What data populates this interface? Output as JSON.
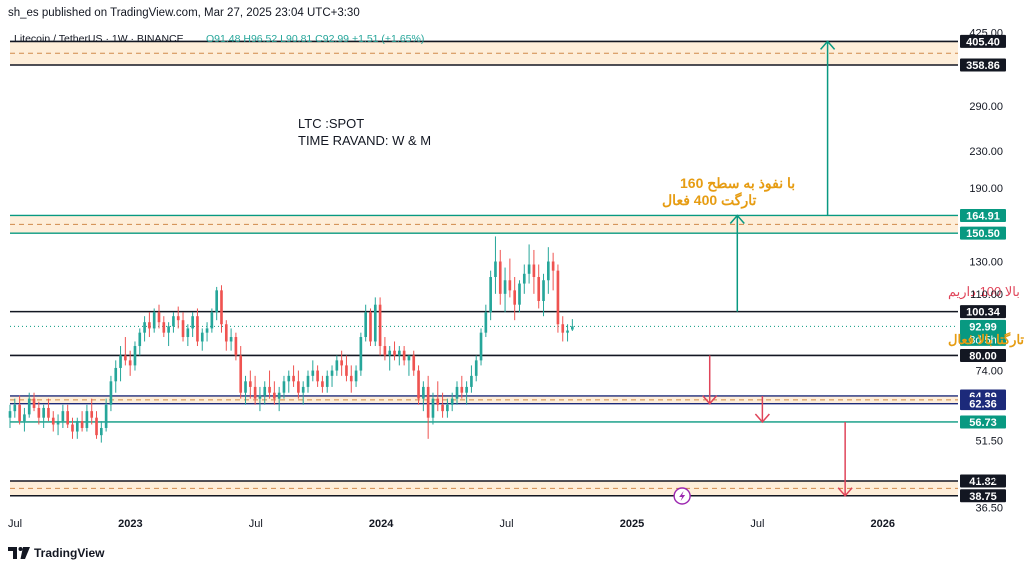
{
  "header": {
    "published_by": "sh_es published on TradingView.com, Mar 27, 2025 23:04 UTC+3:30"
  },
  "legend": {
    "symbol": "Litecoin / TetherUS · 1W · BINANCE",
    "ohlc": "O91.48 H96.52 L90.81 C92.99 +1.51 (+1.65%)"
  },
  "footer": {
    "brand": "TradingView"
  },
  "colors": {
    "up": "#26a69a",
    "down": "#ef5350",
    "teal_line": "#089981",
    "zone_fill": "#fde8cc",
    "annotation_orange": "#e69c12",
    "annotation_red": "#e0455a",
    "arrow_teal": "#089981",
    "arrow_red": "#e0455a"
  },
  "chart_data": {
    "type": "candlestick",
    "title": "Litecoin / TetherUS · 1W · BINANCE",
    "scale": "log",
    "ylim": [
      36,
      430
    ],
    "xlim": [
      2022.52,
      2026.3
    ],
    "y_ticks": [
      425,
      290,
      230,
      190,
      130,
      110,
      74,
      51.5,
      42.5,
      36.5
    ],
    "y_tick_labels": [
      "425.00",
      "290.00",
      "230.00",
      "190.00",
      "130.00",
      "110.00",
      "74.00",
      "51.50",
      "42.50",
      "36.50"
    ],
    "x_ticks": [
      {
        "t": 2022.54,
        "label": "Jul"
      },
      {
        "t": 2023.0,
        "label": "2023"
      },
      {
        "t": 2023.5,
        "label": "Jul"
      },
      {
        "t": 2024.0,
        "label": "2024"
      },
      {
        "t": 2024.5,
        "label": "Jul"
      },
      {
        "t": 2025.0,
        "label": "2025"
      },
      {
        "t": 2025.5,
        "label": "Jul"
      },
      {
        "t": 2026.0,
        "label": "2026"
      }
    ],
    "candles_start": 2022.52,
    "candles_step_weeks": 1,
    "candles": [
      [
        58,
        62,
        55,
        60
      ],
      [
        60,
        64,
        58,
        62
      ],
      [
        62,
        65,
        56,
        57
      ],
      [
        57,
        61,
        54,
        59
      ],
      [
        59,
        66,
        58,
        64
      ],
      [
        64,
        66,
        60,
        61
      ],
      [
        61,
        63,
        56,
        58
      ],
      [
        58,
        62,
        55,
        61
      ],
      [
        61,
        64,
        57,
        58
      ],
      [
        58,
        60,
        54,
        56
      ],
      [
        56,
        59,
        53,
        57
      ],
      [
        57,
        62,
        55,
        60
      ],
      [
        60,
        62,
        55,
        56
      ],
      [
        56,
        58,
        52,
        54
      ],
      [
        54,
        58,
        52,
        57
      ],
      [
        57,
        60,
        54,
        55
      ],
      [
        55,
        62,
        54,
        60
      ],
      [
        60,
        64,
        56,
        58
      ],
      [
        58,
        60,
        52,
        53
      ],
      [
        53,
        57,
        51,
        55
      ],
      [
        55,
        64,
        54,
        62
      ],
      [
        62,
        72,
        60,
        70
      ],
      [
        70,
        78,
        66,
        75
      ],
      [
        75,
        84,
        70,
        80
      ],
      [
        80,
        88,
        76,
        78
      ],
      [
        78,
        82,
        72,
        76
      ],
      [
        76,
        86,
        74,
        84
      ],
      [
        84,
        92,
        80,
        90
      ],
      [
        90,
        98,
        86,
        95
      ],
      [
        95,
        100,
        88,
        92
      ],
      [
        92,
        102,
        90,
        100
      ],
      [
        100,
        104,
        92,
        95
      ],
      [
        95,
        98,
        88,
        90
      ],
      [
        90,
        95,
        84,
        93
      ],
      [
        93,
        100,
        90,
        98
      ],
      [
        98,
        103,
        92,
        96
      ],
      [
        96,
        100,
        86,
        88
      ],
      [
        88,
        94,
        84,
        92
      ],
      [
        92,
        100,
        88,
        98
      ],
      [
        98,
        102,
        84,
        86
      ],
      [
        86,
        92,
        82,
        90
      ],
      [
        90,
        95,
        86,
        92
      ],
      [
        92,
        102,
        90,
        100
      ],
      [
        100,
        114,
        96,
        112
      ],
      [
        112,
        115,
        90,
        94
      ],
      [
        94,
        96,
        82,
        86
      ],
      [
        86,
        92,
        82,
        88
      ],
      [
        88,
        90,
        78,
        80
      ],
      [
        80,
        84,
        64,
        66
      ],
      [
        66,
        72,
        62,
        70
      ],
      [
        70,
        74,
        64,
        68
      ],
      [
        68,
        72,
        62,
        64
      ],
      [
        64,
        68,
        60,
        65
      ],
      [
        65,
        70,
        62,
        68
      ],
      [
        68,
        74,
        64,
        66
      ],
      [
        66,
        70,
        62,
        64
      ],
      [
        64,
        68,
        60,
        66
      ],
      [
        66,
        72,
        64,
        70
      ],
      [
        70,
        74,
        66,
        72
      ],
      [
        72,
        76,
        68,
        70
      ],
      [
        70,
        74,
        64,
        66
      ],
      [
        66,
        70,
        62,
        68
      ],
      [
        68,
        74,
        66,
        72
      ],
      [
        72,
        78,
        70,
        74
      ],
      [
        74,
        76,
        68,
        70
      ],
      [
        70,
        72,
        66,
        68
      ],
      [
        68,
        74,
        66,
        72
      ],
      [
        72,
        76,
        68,
        74
      ],
      [
        74,
        80,
        72,
        78
      ],
      [
        78,
        82,
        72,
        76
      ],
      [
        76,
        80,
        70,
        72
      ],
      [
        72,
        76,
        66,
        70
      ],
      [
        70,
        76,
        68,
        74
      ],
      [
        74,
        90,
        72,
        88
      ],
      [
        88,
        104,
        86,
        100
      ],
      [
        100,
        102,
        84,
        86
      ],
      [
        86,
        108,
        84,
        104
      ],
      [
        104,
        108,
        80,
        84
      ],
      [
        84,
        88,
        78,
        80
      ],
      [
        80,
        84,
        74,
        82
      ],
      [
        82,
        86,
        78,
        80
      ],
      [
        80,
        84,
        76,
        82
      ],
      [
        82,
        84,
        76,
        78
      ],
      [
        78,
        80,
        72,
        80
      ],
      [
        80,
        82,
        72,
        74
      ],
      [
        74,
        76,
        62,
        64
      ],
      [
        64,
        70,
        60,
        68
      ],
      [
        68,
        72,
        52,
        58
      ],
      [
        58,
        66,
        56,
        64
      ],
      [
        64,
        70,
        60,
        62
      ],
      [
        62,
        66,
        58,
        60
      ],
      [
        60,
        64,
        58,
        62
      ],
      [
        62,
        66,
        60,
        64
      ],
      [
        64,
        70,
        62,
        68
      ],
      [
        68,
        72,
        64,
        66
      ],
      [
        66,
        70,
        62,
        68
      ],
      [
        68,
        76,
        66,
        72
      ],
      [
        72,
        80,
        70,
        78
      ],
      [
        78,
        92,
        76,
        90
      ],
      [
        90,
        104,
        88,
        100
      ],
      [
        100,
        124,
        96,
        120
      ],
      [
        120,
        148,
        110,
        130
      ],
      [
        130,
        138,
        104,
        110
      ],
      [
        110,
        126,
        100,
        118
      ],
      [
        118,
        132,
        108,
        112
      ],
      [
        112,
        120,
        96,
        104
      ],
      [
        104,
        118,
        100,
        116
      ],
      [
        116,
        128,
        110,
        122
      ],
      [
        122,
        142,
        116,
        128
      ],
      [
        128,
        138,
        110,
        120
      ],
      [
        120,
        128,
        102,
        106
      ],
      [
        106,
        122,
        98,
        118
      ],
      [
        118,
        140,
        110,
        130
      ],
      [
        130,
        136,
        112,
        124
      ],
      [
        124,
        128,
        90,
        94
      ],
      [
        94,
        98,
        86,
        90
      ],
      [
        90,
        94,
        86,
        91
      ],
      [
        91.48,
        96.52,
        90.81,
        92.99
      ]
    ],
    "levels": [
      {
        "value": 405.4,
        "label": "405.40",
        "style": "black",
        "badge": "black"
      },
      {
        "value": 358.86,
        "label": "358.86",
        "style": "black",
        "badge": "black"
      },
      {
        "value": 164.91,
        "label": "164.91",
        "style": "teal",
        "badge": "green"
      },
      {
        "value": 150.5,
        "label": "150.50",
        "style": "teal",
        "badge": "green"
      },
      {
        "value": 100.34,
        "label": "100.34",
        "style": "black",
        "badge": "black"
      },
      {
        "value": 92.99,
        "label": "92.99",
        "style": "price",
        "badge": "green",
        "sublabel": "3d 5h"
      },
      {
        "value": 80.0,
        "label": "80.00",
        "style": "black",
        "badge": "black"
      },
      {
        "value": 64.89,
        "label": "64.89",
        "style": "navy",
        "badge": "navy"
      },
      {
        "value": 62.36,
        "label": "62.36",
        "style": "navy",
        "badge": "navy"
      },
      {
        "value": 56.73,
        "label": "56.73",
        "style": "teal",
        "badge": "green"
      },
      {
        "value": 41.82,
        "label": "41.82",
        "style": "black",
        "badge": "black"
      },
      {
        "value": 38.75,
        "label": "38.75",
        "style": "black",
        "badge": "black"
      }
    ],
    "zones": [
      {
        "top": 405.4,
        "bottom": 358.86
      },
      {
        "top": 164.91,
        "bottom": 150.5
      },
      {
        "top": 64.89,
        "bottom": 62.36
      },
      {
        "top": 41.82,
        "bottom": 38.75
      }
    ],
    "annotations": {
      "spot_line1": "LTC :SPOT",
      "spot_line2": "TIME RAVAND: W & M",
      "target_line1": "با نفوذ به سطح 160",
      "target_line2": "تارگت 400 فعال",
      "monthly_note": "نیاز به تثبیت ماهانه بالا 100 داریم",
      "floor_note": "باحفظ کف 80 تارگتا بالا فعال"
    },
    "arrows": [
      {
        "x": 2025.78,
        "from": 164.91,
        "to": 405.4,
        "color": "teal"
      },
      {
        "x": 2025.42,
        "from": 100.34,
        "to": 164.91,
        "color": "teal"
      },
      {
        "x": 2025.31,
        "from": 80.0,
        "to": 62.36,
        "color": "red"
      },
      {
        "x": 2025.52,
        "from": 64.89,
        "to": 56.73,
        "color": "red"
      },
      {
        "x": 2025.85,
        "from": 56.73,
        "to": 38.75,
        "color": "red"
      }
    ]
  }
}
